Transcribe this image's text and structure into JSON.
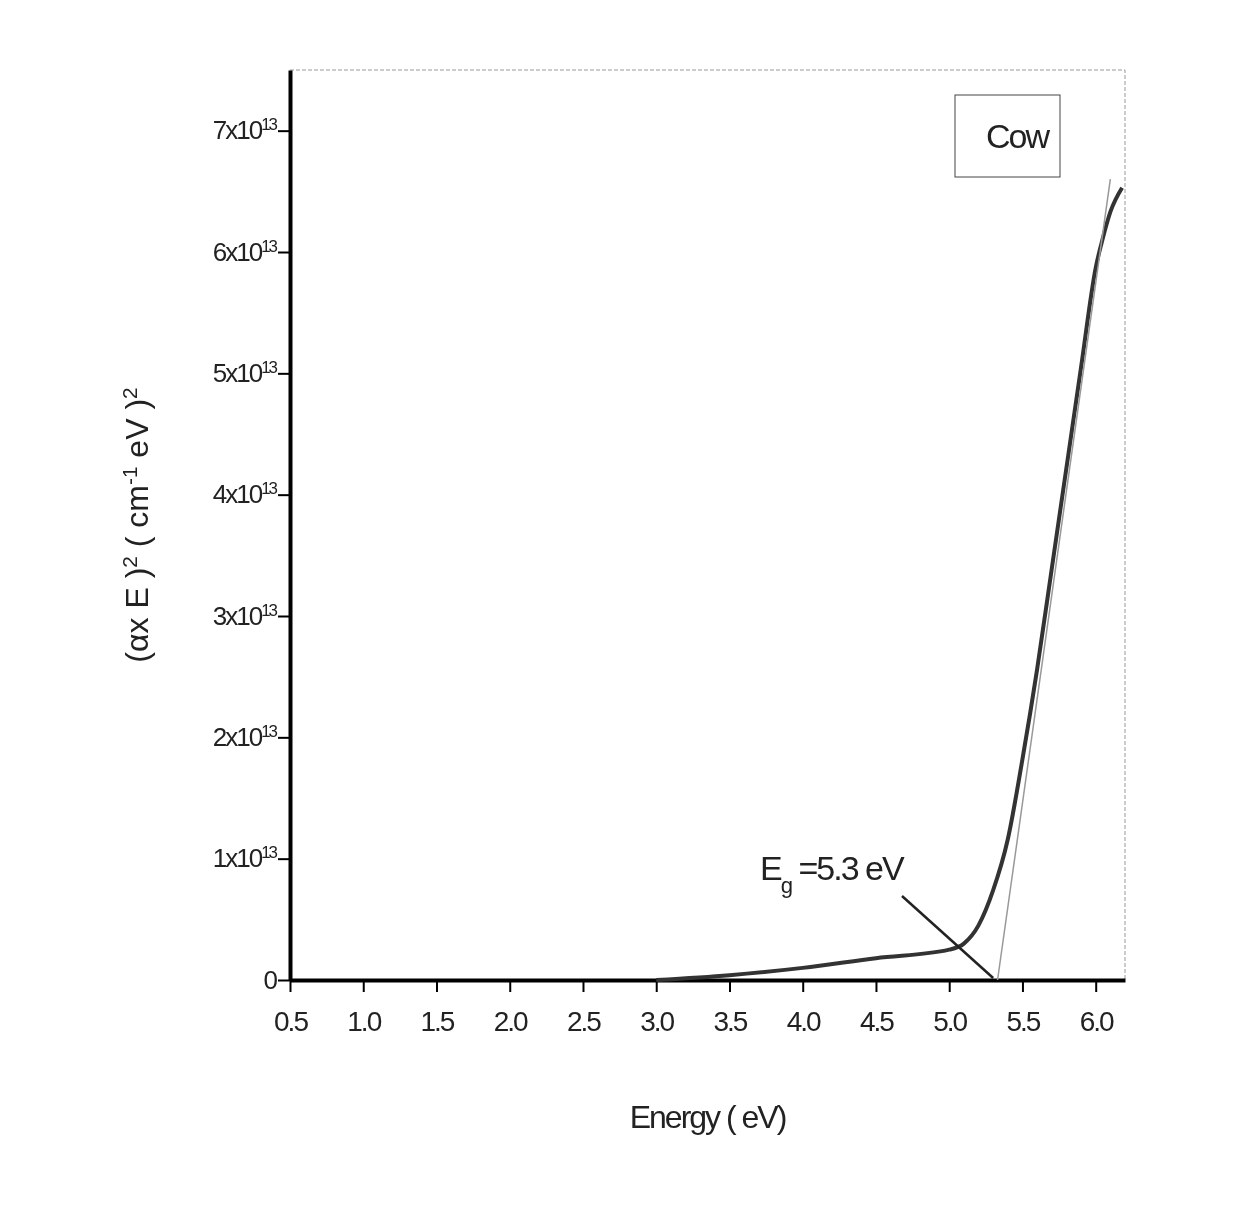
{
  "chart_data": {
    "type": "line",
    "xlabel": "Energy ( eV)",
    "ylabel": "(αx E )$^{2}$ ( cm$^{-1}$ eV )$^{2}$",
    "xlim": [
      0.5,
      6.2
    ],
    "ylim": [
      0,
      75000000000000.0
    ],
    "xticks": [
      {
        "value": 0.5,
        "label": "0.5"
      },
      {
        "value": 1,
        "label": "1.0"
      },
      {
        "value": 1.5,
        "label": "1.5"
      },
      {
        "value": 2,
        "label": "2.0"
      },
      {
        "value": 2.5,
        "label": "2.5"
      },
      {
        "value": 3,
        "label": "3.0"
      },
      {
        "value": 3.5,
        "label": "3.5"
      },
      {
        "value": 4,
        "label": "4.0"
      },
      {
        "value": 4.5,
        "label": "4.5"
      },
      {
        "value": 5,
        "label": "5.0"
      },
      {
        "value": 5.5,
        "label": "5.5"
      },
      {
        "value": 6,
        "label": "6.0"
      }
    ],
    "yticks": [
      {
        "value": 0,
        "label": "0"
      },
      {
        "value": 10000000000000.0,
        "label": "1x10$^{13}$"
      },
      {
        "value": 20000000000000.0,
        "label": "2x10$^{13}$"
      },
      {
        "value": 30000000000000.0,
        "label": "3x10$^{13}$"
      },
      {
        "value": 40000000000000.0,
        "label": "4x10$^{13}$"
      },
      {
        "value": 50000000000000.0,
        "label": "5x10$^{13}$"
      },
      {
        "value": 60000000000000.0,
        "label": "6x10$^{13}$"
      },
      {
        "value": 70000000000000.0,
        "label": "7x10$^{13}$"
      }
    ],
    "legend": "top right",
    "grid": false,
    "marker": "none",
    "line_style": "solid",
    "series": [
      {
        "name": "Cow",
        "color": "#333333",
        "x": [
          3.0,
          3.5,
          4.0,
          4.5,
          5.0,
          5.1,
          5.2,
          5.3,
          5.4,
          5.5,
          5.6,
          5.7,
          5.8,
          5.9,
          6.0,
          6.05,
          6.1,
          6.18
        ],
        "values": [
          0,
          400000000000.0,
          1000000000000.0,
          1800000000000.0,
          2500000000000.0,
          3000000000000.0,
          4500000000000.0,
          7400000000000.0,
          11600000000000.0,
          18200000000000.0,
          25600000000000.0,
          33900000000000.0,
          42200000000000.0,
          50500000000000.0,
          58700000000000.0,
          61200000000000.0,
          63300000000000.0,
          65300000000000.0
        ]
      },
      {
        "type": "line",
        "color": "#999999",
        "x": [
          5.33,
          6.1
        ],
        "values": [
          0,
          66000000000000.0
        ]
      }
    ],
    "annotations": [
      {
        "text": "E$_{g}$ =5.3 eV",
        "x": 5.3,
        "y": 0
      }
    ]
  }
}
